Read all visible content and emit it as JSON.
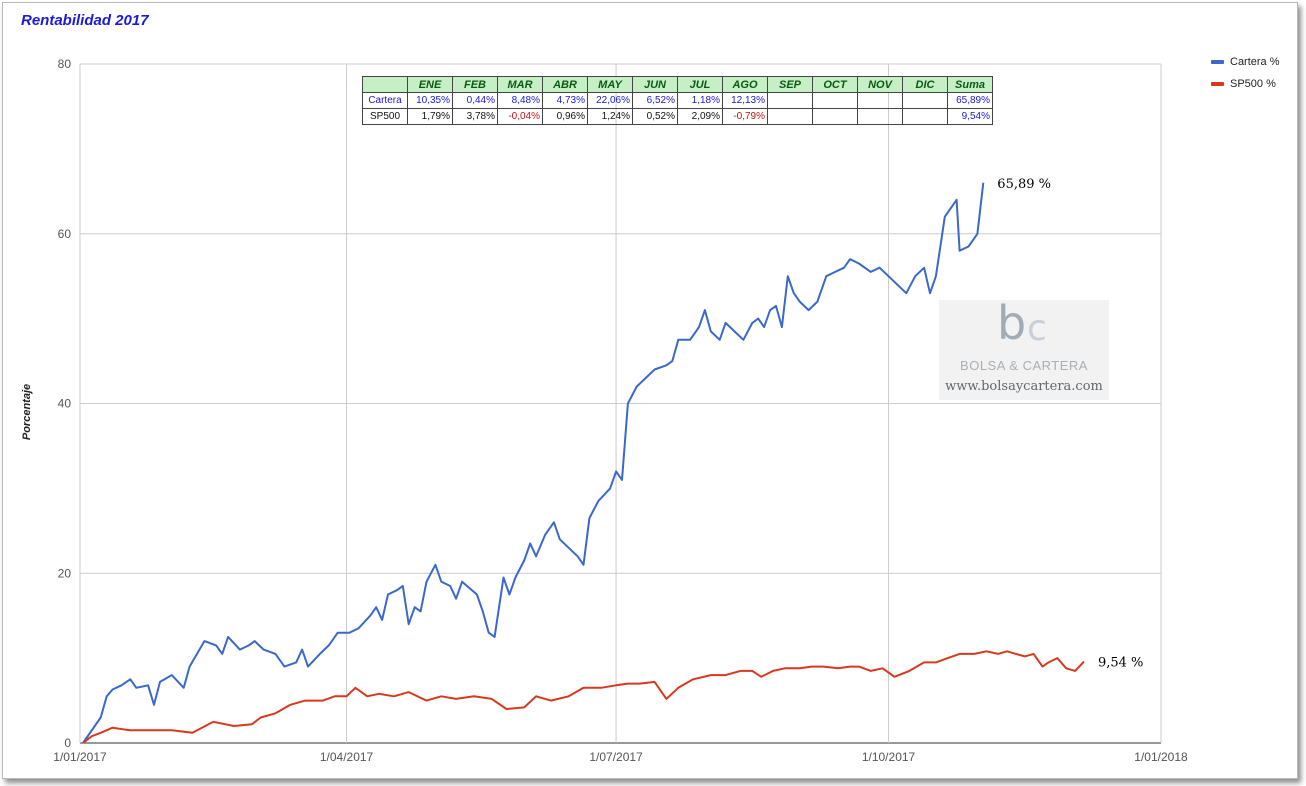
{
  "chart_data": {
    "type": "line",
    "title": "Rentabilidad 2017",
    "ylabel": "Porcentaje",
    "xlabel": "",
    "ylim": [
      0,
      80
    ],
    "y_ticks": [
      "0",
      "20",
      "40",
      "60",
      "80"
    ],
    "x_range": [
      "2017-01-01",
      "2018-01-01"
    ],
    "x_ticks": [
      "1/01/2017",
      "1/04/2017",
      "1/07/2017",
      "1/10/2017",
      "1/01/2018"
    ],
    "grid": true,
    "legend_position": "right",
    "series": [
      {
        "name": "Cartera %",
        "color": "#3a68cc",
        "end_label": "65,89 %",
        "points": [
          [
            "2017-01-02",
            0.0
          ],
          [
            "2017-01-04",
            1.0
          ],
          [
            "2017-01-06",
            2.0
          ],
          [
            "2017-01-08",
            3.0
          ],
          [
            "2017-01-10",
            5.5
          ],
          [
            "2017-01-12",
            6.3
          ],
          [
            "2017-01-15",
            6.8
          ],
          [
            "2017-01-18",
            7.5
          ],
          [
            "2017-01-20",
            6.5
          ],
          [
            "2017-01-24",
            6.8
          ],
          [
            "2017-01-26",
            4.5
          ],
          [
            "2017-01-28",
            7.2
          ],
          [
            "2017-02-01",
            8.0
          ],
          [
            "2017-02-05",
            6.5
          ],
          [
            "2017-02-07",
            9.0
          ],
          [
            "2017-02-12",
            12.0
          ],
          [
            "2017-02-16",
            11.5
          ],
          [
            "2017-02-18",
            10.5
          ],
          [
            "2017-02-20",
            12.5
          ],
          [
            "2017-02-24",
            11.0
          ],
          [
            "2017-02-27",
            11.5
          ],
          [
            "2017-03-01",
            12.0
          ],
          [
            "2017-03-04",
            11.0
          ],
          [
            "2017-03-08",
            10.5
          ],
          [
            "2017-03-11",
            9.0
          ],
          [
            "2017-03-15",
            9.5
          ],
          [
            "2017-03-17",
            11.0
          ],
          [
            "2017-03-19",
            9.0
          ],
          [
            "2017-03-23",
            10.5
          ],
          [
            "2017-03-26",
            11.5
          ],
          [
            "2017-03-29",
            13.0
          ],
          [
            "2017-04-02",
            13.0
          ],
          [
            "2017-04-05",
            13.5
          ],
          [
            "2017-04-09",
            15.0
          ],
          [
            "2017-04-11",
            16.0
          ],
          [
            "2017-04-13",
            14.5
          ],
          [
            "2017-04-15",
            17.5
          ],
          [
            "2017-04-18",
            18.0
          ],
          [
            "2017-04-20",
            18.5
          ],
          [
            "2017-04-22",
            14.0
          ],
          [
            "2017-04-24",
            16.0
          ],
          [
            "2017-04-26",
            15.5
          ],
          [
            "2017-04-28",
            19.0
          ],
          [
            "2017-05-01",
            21.0
          ],
          [
            "2017-05-03",
            19.0
          ],
          [
            "2017-05-06",
            18.5
          ],
          [
            "2017-05-08",
            17.0
          ],
          [
            "2017-05-10",
            19.0
          ],
          [
            "2017-05-15",
            17.5
          ],
          [
            "2017-05-17",
            15.5
          ],
          [
            "2017-05-19",
            13.0
          ],
          [
            "2017-05-21",
            12.5
          ],
          [
            "2017-05-24",
            19.5
          ],
          [
            "2017-05-26",
            17.5
          ],
          [
            "2017-05-28",
            19.5
          ],
          [
            "2017-05-31",
            21.5
          ],
          [
            "2017-06-02",
            23.5
          ],
          [
            "2017-06-04",
            22.0
          ],
          [
            "2017-06-07",
            24.5
          ],
          [
            "2017-06-10",
            26.0
          ],
          [
            "2017-06-12",
            24.0
          ],
          [
            "2017-06-15",
            23.0
          ],
          [
            "2017-06-18",
            22.0
          ],
          [
            "2017-06-20",
            21.0
          ],
          [
            "2017-06-22",
            26.5
          ],
          [
            "2017-06-25",
            28.5
          ],
          [
            "2017-06-29",
            30.0
          ],
          [
            "2017-07-01",
            32.0
          ],
          [
            "2017-07-03",
            31.0
          ],
          [
            "2017-07-05",
            40.0
          ],
          [
            "2017-07-08",
            42.0
          ],
          [
            "2017-07-11",
            43.0
          ],
          [
            "2017-07-14",
            44.0
          ],
          [
            "2017-07-18",
            44.5
          ],
          [
            "2017-07-20",
            45.0
          ],
          [
            "2017-07-22",
            47.5
          ],
          [
            "2017-07-26",
            47.5
          ],
          [
            "2017-07-29",
            49.0
          ],
          [
            "2017-07-31",
            51.0
          ],
          [
            "2017-08-02",
            48.5
          ],
          [
            "2017-08-05",
            47.5
          ],
          [
            "2017-08-07",
            49.5
          ],
          [
            "2017-08-10",
            48.5
          ],
          [
            "2017-08-13",
            47.5
          ],
          [
            "2017-08-16",
            49.5
          ],
          [
            "2017-08-18",
            50.0
          ],
          [
            "2017-08-20",
            49.0
          ],
          [
            "2017-08-22",
            51.0
          ],
          [
            "2017-08-24",
            51.5
          ],
          [
            "2017-08-26",
            49.0
          ],
          [
            "2017-08-28",
            55.0
          ],
          [
            "2017-08-30",
            53.0
          ],
          [
            "2017-09-01",
            52.0
          ],
          [
            "2017-09-04",
            51.0
          ],
          [
            "2017-09-07",
            52.0
          ],
          [
            "2017-09-10",
            55.0
          ],
          [
            "2017-09-13",
            55.5
          ],
          [
            "2017-09-16",
            56.0
          ],
          [
            "2017-09-18",
            57.0
          ],
          [
            "2017-09-21",
            56.5
          ],
          [
            "2017-09-25",
            55.5
          ],
          [
            "2017-09-28",
            56.0
          ],
          [
            "2017-10-01",
            55.0
          ],
          [
            "2017-10-04",
            54.0
          ],
          [
            "2017-10-07",
            53.0
          ],
          [
            "2017-10-10",
            55.0
          ],
          [
            "2017-10-13",
            56.0
          ],
          [
            "2017-10-15",
            53.0
          ],
          [
            "2017-10-17",
            55.0
          ],
          [
            "2017-10-20",
            62.0
          ],
          [
            "2017-10-22",
            63.0
          ],
          [
            "2017-10-24",
            64.0
          ],
          [
            "2017-10-25",
            58.0
          ],
          [
            "2017-10-28",
            58.5
          ],
          [
            "2017-10-31",
            60.0
          ],
          [
            "2017-11-02",
            66.0
          ]
        ]
      },
      {
        "name": "SP500 %",
        "color": "#d6391c",
        "end_label": "9,54 %",
        "points": [
          [
            "2017-01-02",
            0.0
          ],
          [
            "2017-01-05",
            0.8
          ],
          [
            "2017-01-08",
            1.2
          ],
          [
            "2017-01-12",
            1.8
          ],
          [
            "2017-01-18",
            1.5
          ],
          [
            "2017-01-25",
            1.5
          ],
          [
            "2017-02-01",
            1.5
          ],
          [
            "2017-02-08",
            1.2
          ],
          [
            "2017-02-15",
            2.5
          ],
          [
            "2017-02-22",
            2.0
          ],
          [
            "2017-02-28",
            2.2
          ],
          [
            "2017-03-03",
            3.0
          ],
          [
            "2017-03-08",
            3.5
          ],
          [
            "2017-03-13",
            4.5
          ],
          [
            "2017-03-18",
            5.0
          ],
          [
            "2017-03-24",
            5.0
          ],
          [
            "2017-03-28",
            5.5
          ],
          [
            "2017-04-01",
            5.5
          ],
          [
            "2017-04-04",
            6.5
          ],
          [
            "2017-04-08",
            5.5
          ],
          [
            "2017-04-12",
            5.8
          ],
          [
            "2017-04-17",
            5.5
          ],
          [
            "2017-04-22",
            6.0
          ],
          [
            "2017-04-28",
            5.0
          ],
          [
            "2017-05-03",
            5.5
          ],
          [
            "2017-05-08",
            5.2
          ],
          [
            "2017-05-14",
            5.5
          ],
          [
            "2017-05-20",
            5.2
          ],
          [
            "2017-05-25",
            4.0
          ],
          [
            "2017-05-31",
            4.2
          ],
          [
            "2017-06-04",
            5.5
          ],
          [
            "2017-06-09",
            5.0
          ],
          [
            "2017-06-15",
            5.5
          ],
          [
            "2017-06-20",
            6.5
          ],
          [
            "2017-06-26",
            6.5
          ],
          [
            "2017-07-01",
            6.8
          ],
          [
            "2017-07-05",
            7.0
          ],
          [
            "2017-07-09",
            7.0
          ],
          [
            "2017-07-14",
            7.2
          ],
          [
            "2017-07-18",
            5.2
          ],
          [
            "2017-07-22",
            6.5
          ],
          [
            "2017-07-27",
            7.5
          ],
          [
            "2017-08-02",
            8.0
          ],
          [
            "2017-08-07",
            8.0
          ],
          [
            "2017-08-12",
            8.5
          ],
          [
            "2017-08-16",
            8.5
          ],
          [
            "2017-08-19",
            7.8
          ],
          [
            "2017-08-23",
            8.5
          ],
          [
            "2017-08-27",
            8.8
          ],
          [
            "2017-09-01",
            8.8
          ],
          [
            "2017-09-05",
            9.0
          ],
          [
            "2017-09-09",
            9.0
          ],
          [
            "2017-09-14",
            8.8
          ],
          [
            "2017-09-18",
            9.0
          ],
          [
            "2017-09-21",
            9.0
          ],
          [
            "2017-09-25",
            8.5
          ],
          [
            "2017-09-29",
            8.8
          ],
          [
            "2017-10-03",
            7.8
          ],
          [
            "2017-10-08",
            8.5
          ],
          [
            "2017-10-13",
            9.5
          ],
          [
            "2017-10-17",
            9.5
          ],
          [
            "2017-10-21",
            10.0
          ],
          [
            "2017-10-25",
            10.5
          ],
          [
            "2017-10-30",
            10.5
          ],
          [
            "2017-11-03",
            10.8
          ],
          [
            "2017-11-07",
            10.5
          ],
          [
            "2017-11-10",
            10.8
          ],
          [
            "2017-11-13",
            10.5
          ],
          [
            "2017-11-16",
            10.2
          ],
          [
            "2017-11-19",
            10.5
          ],
          [
            "2017-11-22",
            9.0
          ],
          [
            "2017-11-24",
            9.5
          ],
          [
            "2017-11-27",
            10.0
          ],
          [
            "2017-11-30",
            8.8
          ],
          [
            "2017-12-03",
            8.5
          ],
          [
            "2017-12-06",
            9.6
          ]
        ]
      }
    ],
    "table": {
      "columns": [
        "",
        "ENE",
        "FEB",
        "MAR",
        "ABR",
        "MAY",
        "JUN",
        "JUL",
        "AGO",
        "SEP",
        "OCT",
        "NOV",
        "DIC",
        "Suma"
      ],
      "rows": [
        {
          "name": "Cartera",
          "values": [
            "10,35%",
            "0,44%",
            "8,48%",
            "4,73%",
            "22,06%",
            "6,52%",
            "1,18%",
            "12,13%",
            "",
            "",
            "",
            "",
            "65,89%"
          ],
          "tones": [
            "blue",
            "blue",
            "blue",
            "blue",
            "blue",
            "blue",
            "blue",
            "blue",
            "blue",
            "blue",
            "blue",
            "blue",
            "blue"
          ]
        },
        {
          "name": "SP500",
          "values": [
            "1,79%",
            "3,78%",
            "-0,04%",
            "0,96%",
            "1,24%",
            "0,52%",
            "2,09%",
            "-0,79%",
            "",
            "",
            "",
            "",
            "9,54%"
          ],
          "tones": [
            "black",
            "black",
            "red",
            "black",
            "black",
            "black",
            "black",
            "red",
            "black",
            "black",
            "black",
            "black",
            "blue"
          ]
        }
      ]
    }
  },
  "watermark": {
    "brand": "BOLSA & CARTERA",
    "url": "www.bolsaycartera.com",
    "logo_letters": "bc"
  }
}
